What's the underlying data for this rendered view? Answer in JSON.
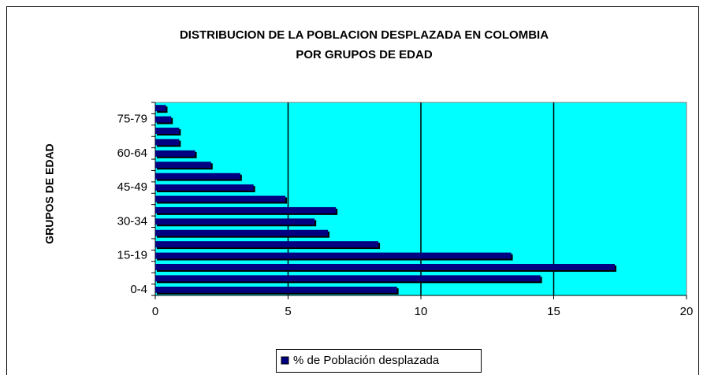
{
  "chart_data": {
    "type": "hbar",
    "title": "DISTRIBUCION DE LA POBLACION DESPLAZADA EN COLOMBIA",
    "subtitle": "POR GRUPOS DE EDAD",
    "y_label": "GRUPOS DE EDAD",
    "categories": [
      "0-4",
      null,
      null,
      "15-19",
      null,
      null,
      "30-34",
      null,
      null,
      "45-49",
      null,
      null,
      "60-64",
      null,
      null,
      "75-79",
      null
    ],
    "series": [
      {
        "name": "% de Población desplazada",
        "color": "#000080",
        "values": [
          9.1,
          14.5,
          17.3,
          13.4,
          8.4,
          6.5,
          6.0,
          6.8,
          4.9,
          3.7,
          3.2,
          2.1,
          1.5,
          0.9,
          0.9,
          0.6,
          0.4
        ]
      }
    ],
    "xlim": [
      0,
      20
    ],
    "xticks": [
      0,
      5,
      10,
      15,
      20
    ],
    "grid": true,
    "plot_background": "#00ffff",
    "legend": "bottom"
  }
}
